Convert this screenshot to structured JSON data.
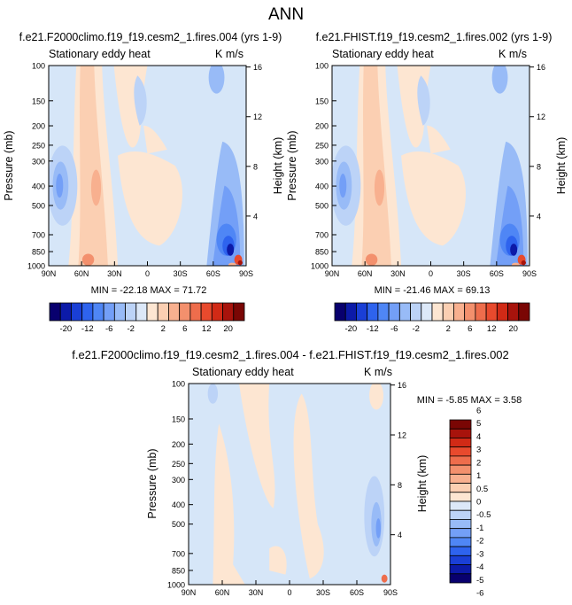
{
  "page_title": "ANN",
  "colors": {
    "neg_scale": [
      "#08006e",
      "#0c1aa8",
      "#1a3fd6",
      "#2e63ee",
      "#4f86f5",
      "#739ff7",
      "#98bbf7",
      "#bcd3f7",
      "#dce8f8"
    ],
    "pos_scale": [
      "#fde6d2",
      "#fbcfb2",
      "#f8b08f",
      "#f3906d",
      "#ee6d4c",
      "#e84a2d",
      "#d12a16",
      "#a8130c",
      "#7a0604"
    ],
    "background_field": "#d6e6f8"
  },
  "chart_data": [
    {
      "type": "contour",
      "title": "f.e21.F2000climo.f19_f19.cesm2_1.fires.004 (yrs 1-9)",
      "subtitle_left": "Stationary eddy heat",
      "subtitle_right": "K m/s",
      "ylabel": "Pressure (mb)",
      "ylabel_right": "Height (km)",
      "xticks": [
        "90N",
        "60N",
        "30N",
        "0",
        "30S",
        "60S",
        "90S"
      ],
      "yticks": [
        "100",
        "150",
        "200",
        "250",
        "300",
        "400",
        "500",
        "700",
        "850",
        "1000"
      ],
      "yticks_right": [
        "16",
        "12",
        "8",
        "4"
      ],
      "stats": "MIN = -22.18   MAX =  71.72",
      "xlim": [
        90,
        -90
      ],
      "ylim": [
        1000,
        100
      ],
      "min": -22.18,
      "max": 71.72
    },
    {
      "type": "contour",
      "title": "f.e21.FHIST.f19_f19.cesm2_1.fires.002 (yrs 1-9)",
      "subtitle_left": "Stationary eddy heat",
      "subtitle_right": "K m/s",
      "ylabel": "Pressure (mb)",
      "ylabel_right": "Height (km)",
      "xticks": [
        "90N",
        "60N",
        "30N",
        "0",
        "30S",
        "60S",
        "90S"
      ],
      "yticks": [
        "100",
        "150",
        "200",
        "250",
        "300",
        "400",
        "500",
        "700",
        "850",
        "1000"
      ],
      "yticks_right": [
        "16",
        "12",
        "8",
        "4"
      ],
      "stats": "MIN = -21.46   MAX =  69.13",
      "xlim": [
        90,
        -90
      ],
      "ylim": [
        1000,
        100
      ],
      "min": -21.46,
      "max": 69.13
    },
    {
      "type": "contour",
      "title": "f.e21.F2000climo.f19_f19.cesm2_1.fires.004 - f.e21.FHIST.f19_f19.cesm2_1.fires.002",
      "subtitle_left": "Stationary eddy heat",
      "subtitle_right": "K m/s",
      "ylabel": "Pressure (mb)",
      "ylabel_right": "Height (km)",
      "xticks": [
        "90N",
        "60N",
        "30N",
        "0",
        "30S",
        "60S",
        "90S"
      ],
      "yticks": [
        "100",
        "150",
        "200",
        "250",
        "300",
        "400",
        "500",
        "700",
        "850",
        "1000"
      ],
      "yticks_right": [
        "16",
        "12",
        "8",
        "4"
      ],
      "stats": "MIN =  -5.85   MAX =   3.58",
      "xlim": [
        90,
        -90
      ],
      "ylim": [
        1000,
        100
      ],
      "min": -5.85,
      "max": 3.58
    }
  ],
  "colorbar_main": {
    "levels": [
      "-20",
      "-12",
      "-6",
      "-2",
      "2",
      "6",
      "12",
      "20"
    ]
  },
  "colorbar_diff": {
    "levels": [
      "6",
      "5",
      "4",
      "3",
      "2",
      "1",
      "0.5",
      "0",
      "-0.5",
      "-1",
      "-2",
      "-3",
      "-4",
      "-5",
      "-6"
    ]
  }
}
